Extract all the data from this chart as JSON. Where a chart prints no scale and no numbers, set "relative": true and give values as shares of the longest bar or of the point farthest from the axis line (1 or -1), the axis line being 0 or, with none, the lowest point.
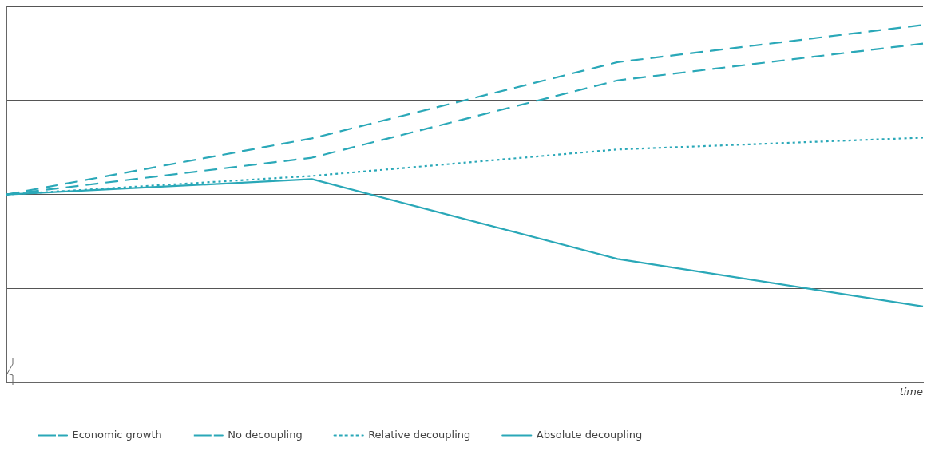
{
  "chart_data": {
    "type": "line",
    "relative": true,
    "xlabel": "time",
    "categories": [
      null,
      null,
      null,
      null
    ],
    "series": [
      {
        "name": "Economic growth",
        "color": "#2aa8b8",
        "line_style": "dashed",
        "values": [
          0.526,
          0.683,
          0.896,
          1
        ]
      },
      {
        "name": "No decoupling",
        "color": "#2aa8b8",
        "line_style": "dashed",
        "values": [
          0.526,
          0.629,
          0.845,
          0.948
        ]
      },
      {
        "name": "Relative decoupling",
        "color": "#2aa8b8",
        "line_style": "dotted",
        "values": [
          0.526,
          0.578,
          0.652,
          0.685
        ]
      },
      {
        "name": "Absolute decoupling",
        "color": "#2aa8b8",
        "line_style": "solid",
        "values": [
          0.526,
          0.569,
          0.346,
          0.213
        ]
      }
    ],
    "grid": "y",
    "legend": "bottom",
    "marker": "none"
  }
}
